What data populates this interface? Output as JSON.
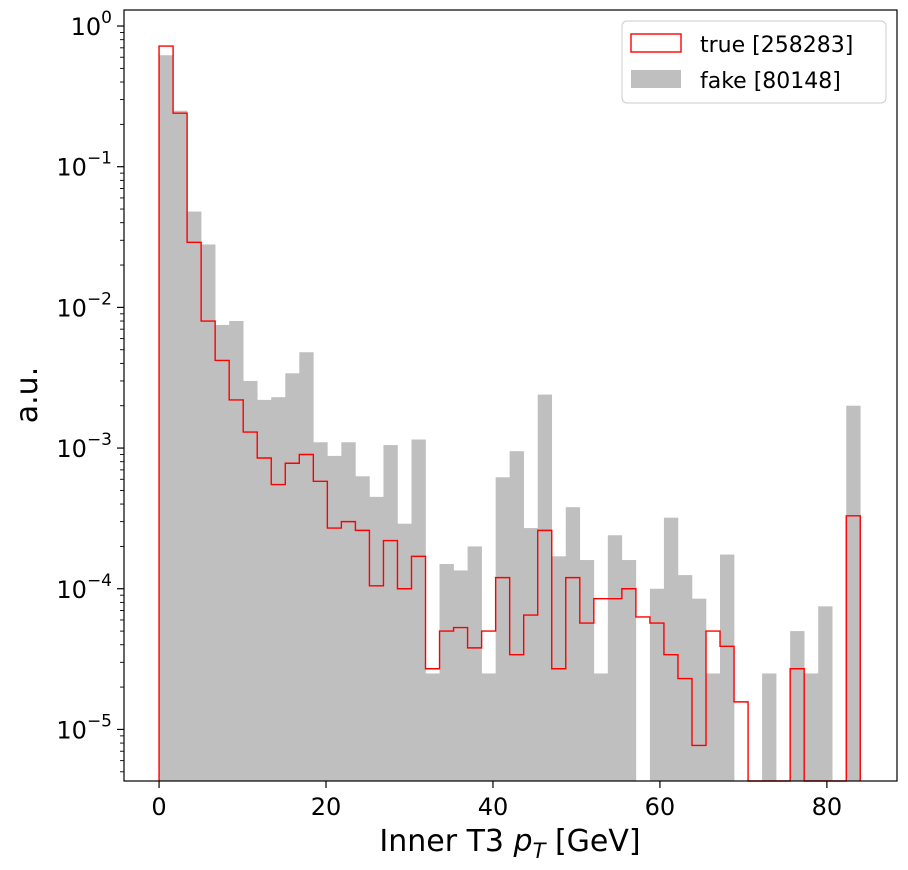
{
  "chart_data": {
    "type": "histogram",
    "xlabel_main": "Inner T3 ",
    "xlabel_math": "p",
    "xlabel_sub": "T",
    "xlabel_unit": " [GeV]",
    "ylabel": "a.u.",
    "x_scale": "linear",
    "y_scale": "log",
    "xlim": [
      -4.2,
      88.4
    ],
    "ylim": [
      4.3e-06,
      1.3
    ],
    "x_ticks": [
      0,
      20,
      40,
      60,
      80
    ],
    "x_tick_labels": [
      "0",
      "20",
      "40",
      "60",
      "80"
    ],
    "y_ticks": [
      1e-05,
      0.0001,
      0.001,
      0.01,
      0.1,
      1
    ],
    "y_tick_labels": [
      {
        "base": "10",
        "exp": "−5"
      },
      {
        "base": "10",
        "exp": "−4"
      },
      {
        "base": "10",
        "exp": "−3"
      },
      {
        "base": "10",
        "exp": "−2"
      },
      {
        "base": "10",
        "exp": "−1"
      },
      {
        "base": "10",
        "exp": "0"
      }
    ],
    "bin_edges": [
      0,
      1.68,
      3.36,
      5.04,
      6.72,
      8.4,
      10.08,
      11.76,
      13.44,
      15.12,
      16.8,
      18.48,
      20.16,
      21.84,
      23.52,
      25.2,
      26.88,
      28.56,
      30.24,
      31.92,
      33.6,
      35.28,
      36.96,
      38.64,
      40.32,
      42.0,
      43.68,
      45.36,
      47.04,
      48.72,
      50.4,
      52.08,
      53.76,
      55.44,
      57.12,
      58.8,
      60.48,
      62.16,
      63.84,
      65.52,
      67.2,
      68.88,
      70.56,
      72.24,
      73.92,
      75.6,
      77.28,
      78.96,
      80.64,
      82.32,
      84.0
    ],
    "series": [
      {
        "name": "fake [80148]",
        "style": "filled",
        "color": "#bfbfbf",
        "values": [
          0.62,
          0.25,
          0.048,
          0.028,
          0.0075,
          0.008,
          0.003,
          0.0022,
          0.0023,
          0.0034,
          0.0048,
          0.0011,
          0.00088,
          0.0011,
          0.00063,
          0.00045,
          0.00105,
          0.00029,
          0.00115,
          2.5e-05,
          0.00015,
          0.000135,
          0.0002,
          2.5e-05,
          0.00062,
          0.00095,
          0.00027,
          0.0024,
          0.00017,
          0.00038,
          0.00016,
          2.5e-05,
          0.00024,
          0.00016,
          0,
          0.0001,
          0.00032,
          0.000125,
          8.5e-05,
          2.5e-05,
          0.000175,
          0,
          0,
          2.5e-05,
          0,
          5e-05,
          2.5e-05,
          7.5e-05,
          0,
          0.002
        ]
      },
      {
        "name": "true [258283]",
        "style": "step",
        "color": "#ff0000",
        "values": [
          0.72,
          0.24,
          0.029,
          0.008,
          0.0042,
          0.0022,
          0.0013,
          0.00085,
          0.00055,
          0.00078,
          0.0009,
          0.00058,
          0.00027,
          0.0003,
          0.00026,
          0.000105,
          0.00022,
          0.0001,
          0.00017,
          2.7e-05,
          5e-05,
          5.3e-05,
          3.8e-05,
          5e-05,
          0.00012,
          3.4e-05,
          6.5e-05,
          0.00026,
          2.7e-05,
          0.00012,
          5.7e-05,
          8.5e-05,
          8.5e-05,
          0.0001,
          6.3e-05,
          5.7e-05,
          3.4e-05,
          2.3e-05,
          7.7e-06,
          5e-05,
          3.9e-05,
          1.57e-05,
          0,
          0,
          0,
          2.7e-05,
          0,
          0,
          0,
          0.00033
        ]
      }
    ],
    "legend": {
      "position": "upper right",
      "entries": [
        "true [258283]",
        "fake [80148]"
      ]
    },
    "grid": false
  }
}
